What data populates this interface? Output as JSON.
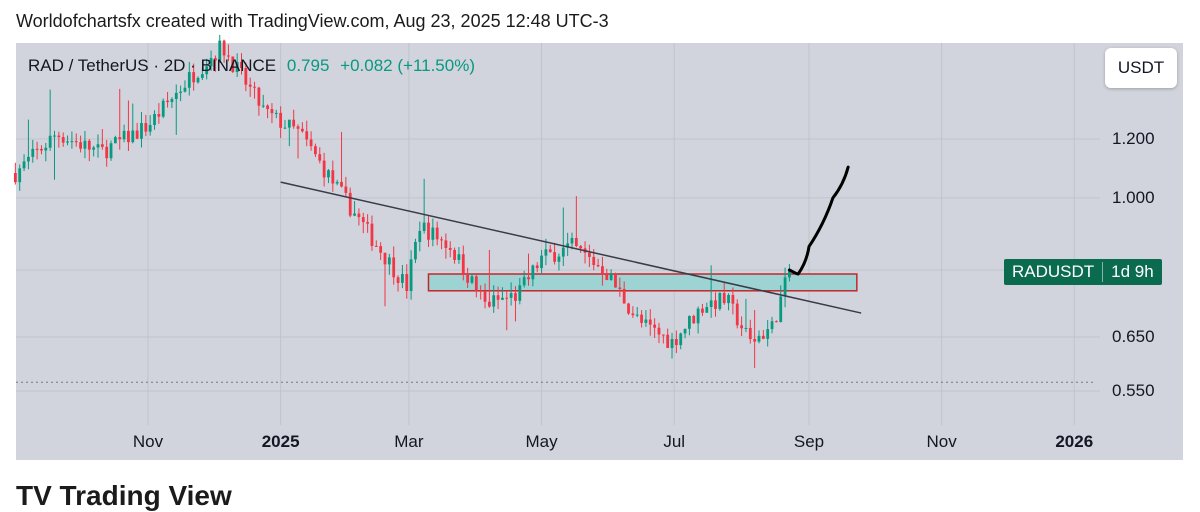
{
  "header": {
    "credit": "Worldofchartsfx created with TradingView.com, Aug 23, 2025 12:48 UTC-3",
    "footer_text": "TV Trading View"
  },
  "legend": {
    "symbol": "RAD / TetherUS · 2D · BINANCE",
    "last": "0.795",
    "change": "+0.082 (+11.50%)"
  },
  "axis": {
    "unit": "USDT"
  },
  "badge": {
    "ticker": "RADUSDT",
    "countdown": "1d 9h"
  },
  "colors": {
    "up": "#089981",
    "down": "#f23645",
    "panel": "#d1d4dc",
    "zone_fill": "#9ed3d3",
    "zone_border": "#c2272d",
    "trendline": "#3a3a48",
    "projection": "#000000"
  },
  "chart_data": {
    "type": "candlestick",
    "y_scale": "log",
    "y_ticks": [
      {
        "label": "1.200",
        "value": 1.2
      },
      {
        "label": "1.000",
        "value": 1.0
      },
      {
        "label": "0.650",
        "value": 0.65
      },
      {
        "label": "0.550",
        "value": 0.55
      }
    ],
    "x_ticks": [
      {
        "label": "Nov",
        "date": "2024-11-01",
        "bold": false
      },
      {
        "label": "2025",
        "date": "2025-01-01",
        "bold": true
      },
      {
        "label": "Mar",
        "date": "2025-03-01",
        "bold": false
      },
      {
        "label": "May",
        "date": "2025-05-01",
        "bold": false
      },
      {
        "label": "Jul",
        "date": "2025-07-01",
        "bold": false
      },
      {
        "label": "Sep",
        "date": "2025-09-01",
        "bold": false
      },
      {
        "label": "Nov",
        "date": "2025-11-01",
        "bold": false
      },
      {
        "label": "2026",
        "date": "2026-01-01",
        "bold": true
      }
    ],
    "trend_path": [
      [
        "2024-09-01",
        1.08
      ],
      [
        "2024-09-20",
        1.22
      ],
      [
        "2024-10-10",
        1.15
      ],
      [
        "2024-11-01",
        1.25
      ],
      [
        "2024-11-20",
        1.45
      ],
      [
        "2024-12-05",
        1.6
      ],
      [
        "2024-12-25",
        1.3
      ],
      [
        "2025-01-10",
        1.22
      ],
      [
        "2025-01-25",
        1.05
      ],
      [
        "2025-02-10",
        0.9
      ],
      [
        "2025-02-28",
        0.76
      ],
      [
        "2025-03-06",
        0.92
      ],
      [
        "2025-03-20",
        0.86
      ],
      [
        "2025-04-05",
        0.72
      ],
      [
        "2025-04-20",
        0.74
      ],
      [
        "2025-05-01",
        0.83
      ],
      [
        "2025-05-15",
        0.86
      ],
      [
        "2025-05-30",
        0.8
      ],
      [
        "2025-06-15",
        0.68
      ],
      [
        "2025-06-30",
        0.64
      ],
      [
        "2025-07-15",
        0.72
      ],
      [
        "2025-07-25",
        0.73
      ],
      [
        "2025-08-05",
        0.64
      ],
      [
        "2025-08-15",
        0.67
      ],
      [
        "2025-08-23",
        0.795
      ]
    ],
    "annotations": {
      "trendline": {
        "from": [
          "2025-01-01",
          1.05
        ],
        "to": [
          "2025-09-25",
          0.7
        ]
      },
      "zone": {
        "from": "2025-03-10",
        "to": "2025-09-23",
        "top": 0.79,
        "bottom": 0.75
      },
      "support_level": 0.565,
      "projection": [
        [
          "2025-08-23",
          0.8
        ],
        [
          "2025-08-27",
          0.79
        ],
        [
          "2025-09-01",
          0.86
        ],
        [
          "2025-09-12",
          1.0
        ],
        [
          "2025-09-19",
          1.1
        ]
      ]
    }
  }
}
